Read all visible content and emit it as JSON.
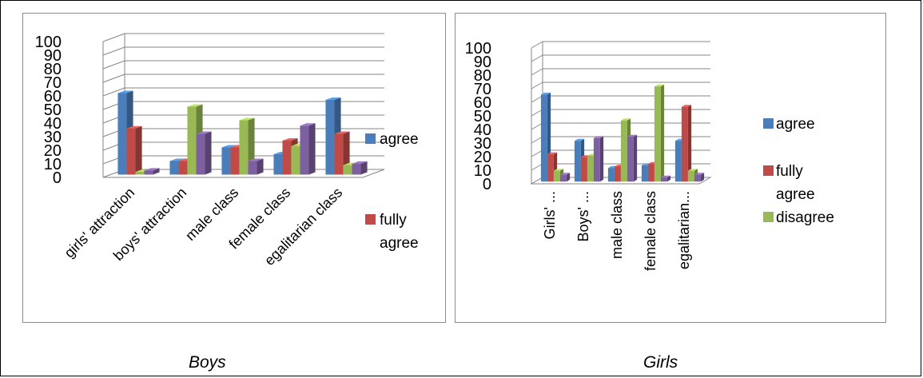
{
  "captions": {
    "boys": "Boys",
    "girls": "Girls"
  },
  "chart_data": [
    {
      "type": "bar",
      "name": "boys-chart",
      "caption": "Boys",
      "categories": [
        "girls' attraction",
        "boys' attraction",
        "male class",
        "female class",
        "egalitarian class"
      ],
      "series": [
        {
          "name": "agree",
          "color": "#4a7ebb",
          "values": [
            60,
            10,
            20,
            15,
            55
          ]
        },
        {
          "name": "fully agree",
          "color": "#be4b48",
          "values": [
            34,
            10,
            20,
            25,
            30
          ]
        },
        {
          "name": "",
          "color": "#98b954",
          "values": [
            2,
            50,
            40,
            21,
            7
          ]
        },
        {
          "name": "",
          "color": "#7d60a0",
          "values": [
            3,
            30,
            10,
            36,
            8
          ]
        }
      ],
      "legend_labels": [
        {
          "series": 0,
          "lines": [
            "agree"
          ]
        },
        {
          "series": 1,
          "lines": [
            "fully",
            "agree"
          ]
        }
      ],
      "yticks": [
        "0",
        "10",
        "20",
        "30",
        "40",
        "50",
        "60",
        "70",
        "80",
        "90",
        "100"
      ],
      "ylim": [
        0,
        100
      ],
      "grid": true,
      "legend_position": "right",
      "style": "3d-clustered-column"
    },
    {
      "type": "bar",
      "name": "girls-chart",
      "caption": "Girls",
      "categories": [
        "Girls' ...",
        "Boys' ...",
        "male class",
        "female class",
        "egalitarian..."
      ],
      "series": [
        {
          "name": "agree",
          "color": "#4a7ebb",
          "values": [
            64,
            30,
            10,
            12,
            30
          ]
        },
        {
          "name": "fully agree",
          "color": "#be4b48",
          "values": [
            20,
            18,
            11,
            13,
            55
          ]
        },
        {
          "name": "disagree",
          "color": "#98b954",
          "values": [
            8,
            19,
            45,
            70,
            8
          ]
        },
        {
          "name": "",
          "color": "#7d60a0",
          "values": [
            5,
            32,
            33,
            3,
            5
          ]
        }
      ],
      "legend_labels": [
        {
          "series": 0,
          "lines": [
            "agree"
          ]
        },
        {
          "series": 1,
          "lines": [
            "fully",
            "agree"
          ]
        },
        {
          "series": 2,
          "lines": [
            "disagree"
          ]
        }
      ],
      "yticks": [
        "0",
        "10",
        "20",
        "30",
        "40",
        "50",
        "60",
        "70",
        "80",
        "90",
        "100"
      ],
      "ylim": [
        0,
        100
      ],
      "grid": true,
      "legend_position": "right",
      "style": "3d-clustered-column"
    }
  ]
}
